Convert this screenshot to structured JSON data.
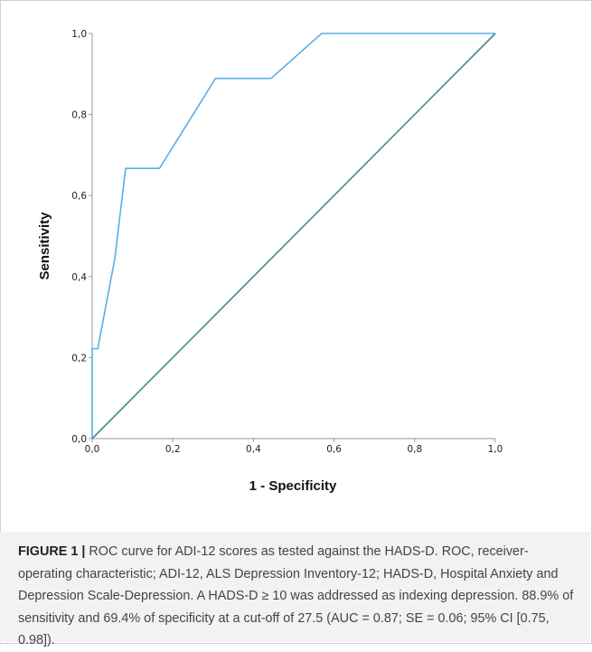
{
  "chart_data": {
    "type": "line",
    "title": "",
    "xlabel": "1 - Specificity",
    "ylabel": "Sensitivity",
    "xlim": [
      0,
      1
    ],
    "ylim": [
      0,
      1
    ],
    "x_ticks": [
      "0,0",
      "0,2",
      "0,4",
      "0,6",
      "0,8",
      "1,0"
    ],
    "y_ticks": [
      "0,0",
      "0,2",
      "0,4",
      "0,6",
      "0,8",
      "1,0"
    ],
    "grid": false,
    "series": [
      {
        "color": "#5aaee6",
        "x": [
          0.0,
          0.0,
          0.014,
          0.014,
          0.056,
          0.083,
          0.083,
          0.167,
          0.306,
          0.306,
          0.444,
          0.569,
          1.0
        ],
        "y": [
          0.0,
          0.222,
          0.222,
          0.222,
          0.444,
          0.667,
          0.667,
          0.667,
          0.889,
          0.889,
          0.889,
          1.0,
          1.0
        ]
      },
      {
        "color": "#3f8f8a",
        "x": [
          0,
          1
        ],
        "y": [
          0,
          1
        ]
      }
    ]
  },
  "caption": {
    "label": "FIGURE 1 |",
    "text": " ROC curve for ADI-12 scores as tested against the HADS-D. ROC, receiver-operating characteristic; ADI-12, ALS Depression Inventory-12; HADS-D, Hospital Anxiety and Depression Scale-Depression. A HADS-D ≥ 10 was addressed as indexing depression. 88.9% of sensitivity and 69.4% of specificity at a cut-off of 27.5 (AUC = 0.87; SE = 0.06; 95% CI [0.75, 0.98])."
  }
}
